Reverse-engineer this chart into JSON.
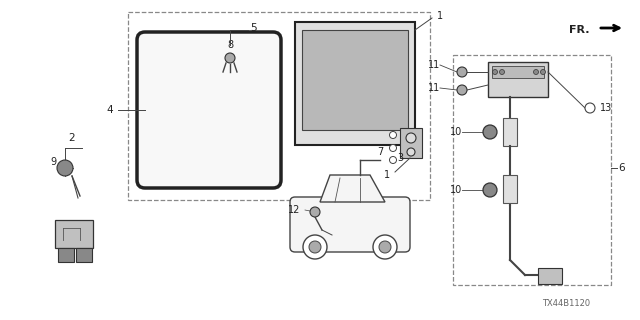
{
  "watermark": "TX44B1120",
  "background_color": "#ffffff",
  "line_color": "#444444",
  "text_color": "#222222",
  "gray_fill": "#d0d0d0",
  "light_fill": "#f0f0f0"
}
